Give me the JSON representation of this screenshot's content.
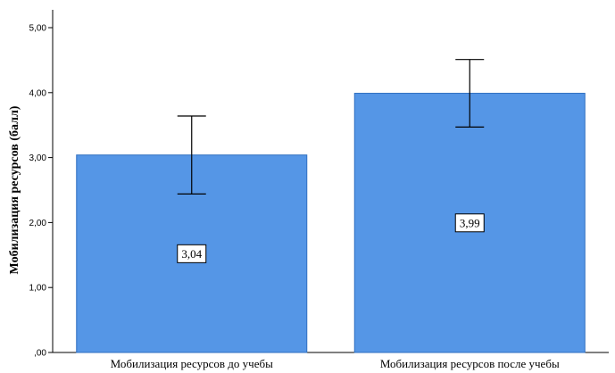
{
  "chart_data": {
    "type": "bar",
    "title": "",
    "xlabel": "",
    "ylabel": "Мобилизация ресурсов (балл)",
    "ylim": [
      0,
      5
    ],
    "yticks": [
      {
        "value": 0,
        "label": ",00"
      },
      {
        "value": 1,
        "label": "1,00"
      },
      {
        "value": 2,
        "label": "2,00"
      },
      {
        "value": 3,
        "label": "3,00"
      },
      {
        "value": 4,
        "label": "4,00"
      },
      {
        "value": 5,
        "label": "5,00"
      }
    ],
    "categories": [
      "Мобилизация ресурсов до учебы",
      "Мобилизация ресурсов после учебы"
    ],
    "values": [
      3.04,
      3.99
    ],
    "value_labels": [
      "3,04",
      "3,99"
    ],
    "error_bars": [
      {
        "low": 2.44,
        "high": 3.64
      },
      {
        "low": 3.47,
        "high": 4.51
      }
    ],
    "grid": false,
    "bar_color": "#5596e6",
    "bar_edge_color": "#2e6fc0"
  }
}
